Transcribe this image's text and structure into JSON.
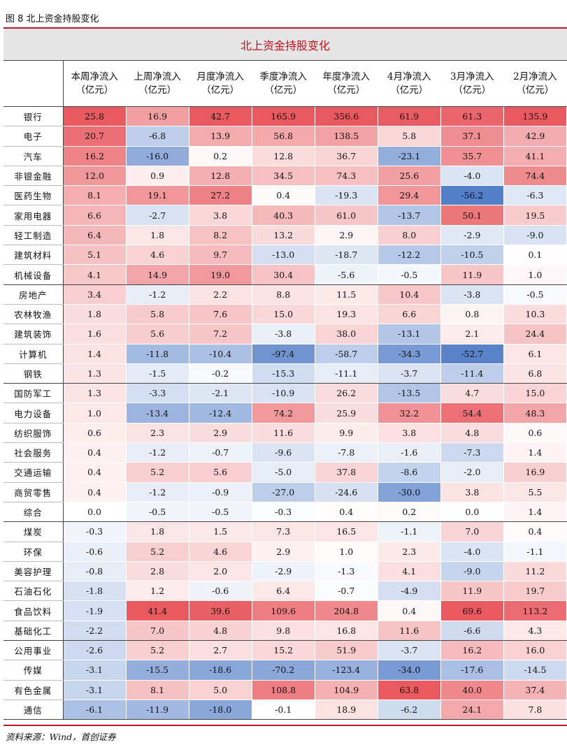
{
  "figure_caption": "图 8 北上资金持股变化",
  "table_title": "北上资金持股变化",
  "source_note": "资料来源：Wind，首创证券",
  "colors": {
    "rule": "#b51e22",
    "title_text": "#c0111a",
    "positive": "#e85a60",
    "negative": "#3c6cc0"
  },
  "columns": [
    {
      "line1": "本周净流入",
      "line2": "（亿元）"
    },
    {
      "line1": "上周净流入",
      "line2": "（亿元）"
    },
    {
      "line1": "月度净流入",
      "line2": "（亿元）"
    },
    {
      "line1": "季度净流入",
      "line2": "（亿元）"
    },
    {
      "line1": "年度净流入",
      "line2": "（亿元）"
    },
    {
      "line1": "4月净流入",
      "line2": "（亿元）"
    },
    {
      "line1": "3月净流入",
      "line2": "（亿元）"
    },
    {
      "line1": "2月净流入",
      "line2": "（亿元）"
    }
  ],
  "rows": [
    {
      "name": "银行",
      "values": [
        25.8,
        16.9,
        42.7,
        165.9,
        356.6,
        61.9,
        61.3,
        135.9
      ]
    },
    {
      "name": "电子",
      "values": [
        20.7,
        -6.8,
        13.9,
        56.8,
        138.5,
        5.8,
        37.1,
        42.9
      ]
    },
    {
      "name": "汽车",
      "values": [
        16.2,
        -16.0,
        0.2,
        12.8,
        36.7,
        -23.1,
        35.7,
        41.1
      ]
    },
    {
      "name": "非银金融",
      "values": [
        12.0,
        0.9,
        12.8,
        34.5,
        74.3,
        25.6,
        -4.0,
        74.4
      ]
    },
    {
      "name": "医药生物",
      "values": [
        8.1,
        19.1,
        27.2,
        0.4,
        -19.3,
        29.4,
        -56.2,
        -6.3
      ]
    },
    {
      "name": "家用电器",
      "values": [
        6.6,
        -2.7,
        3.8,
        40.3,
        61.0,
        -13.7,
        50.1,
        19.5
      ]
    },
    {
      "name": "轻工制造",
      "values": [
        6.4,
        1.8,
        8.2,
        13.2,
        2.9,
        8.0,
        -2.9,
        -9.0
      ]
    },
    {
      "name": "建筑材料",
      "values": [
        5.1,
        4.6,
        9.7,
        -13.0,
        -18.7,
        -12.2,
        -10.5,
        0.1
      ]
    },
    {
      "name": "机械设备",
      "values": [
        4.1,
        14.9,
        19.0,
        30.4,
        -5.6,
        -0.5,
        11.9,
        1.0
      ]
    },
    {
      "name": "房地产",
      "values": [
        3.4,
        -1.2,
        2.2,
        8.8,
        11.5,
        10.4,
        -3.8,
        -0.5
      ]
    },
    {
      "name": "农林牧渔",
      "values": [
        1.8,
        5.8,
        7.6,
        15.0,
        19.3,
        6.6,
        0.8,
        10.3
      ]
    },
    {
      "name": "建筑装饰",
      "values": [
        1.6,
        5.6,
        7.2,
        -3.8,
        38.0,
        -13.1,
        2.1,
        24.4
      ]
    },
    {
      "name": "计算机",
      "values": [
        1.4,
        -11.8,
        -10.4,
        -97.4,
        -58.7,
        -34.3,
        -52.7,
        6.1
      ]
    },
    {
      "name": "钢铁",
      "values": [
        1.3,
        -1.5,
        -0.2,
        -15.3,
        -11.1,
        -3.7,
        -11.4,
        6.8
      ]
    },
    {
      "name": "国防军工",
      "values": [
        1.3,
        -3.3,
        -2.1,
        -10.9,
        26.2,
        -13.5,
        4.7,
        15.0
      ]
    },
    {
      "name": "电力设备",
      "values": [
        1.0,
        -13.4,
        -12.4,
        74.2,
        25.9,
        32.2,
        54.4,
        48.3
      ]
    },
    {
      "name": "纺织服饰",
      "values": [
        0.6,
        2.3,
        2.9,
        11.6,
        9.9,
        3.8,
        4.8,
        0.6
      ]
    },
    {
      "name": "社会服务",
      "values": [
        0.4,
        -1.2,
        -0.7,
        -9.6,
        -7.8,
        -1.6,
        -7.3,
        1.4
      ]
    },
    {
      "name": "交通运输",
      "values": [
        0.4,
        5.2,
        5.6,
        -5.0,
        37.8,
        -8.6,
        -2.0,
        16.9
      ]
    },
    {
      "name": "商贸零售",
      "values": [
        0.4,
        -1.2,
        -0.9,
        -27.0,
        -24.6,
        -30.0,
        3.8,
        5.5
      ]
    },
    {
      "name": "综合",
      "values": [
        0.0,
        -0.5,
        -0.5,
        -0.3,
        0.4,
        0.2,
        0.0,
        1.4
      ]
    },
    {
      "name": "煤炭",
      "values": [
        -0.3,
        1.8,
        1.5,
        7.3,
        16.5,
        -1.1,
        7.0,
        0.4
      ]
    },
    {
      "name": "环保",
      "values": [
        -0.6,
        5.2,
        4.6,
        2.9,
        1.0,
        2.3,
        -4.0,
        -1.1
      ]
    },
    {
      "name": "美容护理",
      "values": [
        -0.8,
        2.8,
        2.0,
        -2.9,
        -1.3,
        4.1,
        -9.0,
        11.2
      ]
    },
    {
      "name": "石油石化",
      "values": [
        -1.8,
        1.2,
        -0.6,
        6.4,
        -0.7,
        -4.9,
        11.9,
        19.7
      ]
    },
    {
      "name": "食品饮料",
      "values": [
        -1.9,
        41.4,
        39.6,
        109.6,
        204.8,
        0.4,
        69.6,
        113.2
      ]
    },
    {
      "name": "基础化工",
      "values": [
        -2.2,
        7.0,
        4.8,
        9.8,
        16.8,
        11.6,
        -6.6,
        4.3
      ]
    },
    {
      "name": "公用事业",
      "values": [
        -2.6,
        5.2,
        2.7,
        15.2,
        51.9,
        -3.7,
        16.2,
        16.0
      ]
    },
    {
      "name": "传媒",
      "values": [
        -3.1,
        -15.5,
        -18.6,
        -70.2,
        -123.4,
        -34.0,
        -17.6,
        -14.5
      ]
    },
    {
      "name": "有色金属",
      "values": [
        -3.1,
        8.1,
        5.0,
        108.8,
        104.9,
        63.8,
        40.0,
        37.4
      ]
    },
    {
      "name": "通信",
      "values": [
        -6.1,
        -11.9,
        -18.0,
        -0.1,
        18.9,
        -6.2,
        24.1,
        7.8
      ]
    }
  ]
}
